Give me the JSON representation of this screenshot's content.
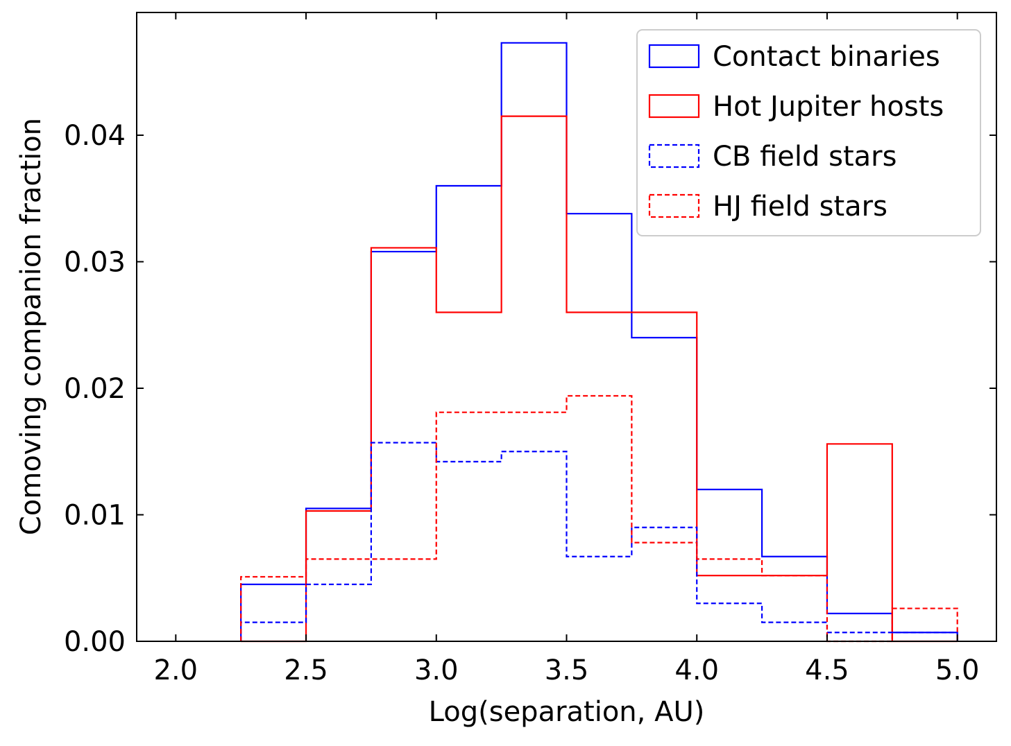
{
  "chart_data": {
    "type": "histogram-step",
    "xlabel": "Log(separation, AU)",
    "ylabel": "Comoving companion fraction",
    "xlim": [
      1.85,
      5.15
    ],
    "ylim": [
      0.0,
      0.0497
    ],
    "xticks": [
      2.0,
      2.5,
      3.0,
      3.5,
      4.0,
      4.5,
      5.0
    ],
    "xtick_labels": [
      "2.0",
      "2.5",
      "3.0",
      "3.5",
      "4.0",
      "4.5",
      "5.0"
    ],
    "yticks": [
      0.0,
      0.01,
      0.02,
      0.03,
      0.04
    ],
    "ytick_labels": [
      "0.00",
      "0.01",
      "0.02",
      "0.03",
      "0.04"
    ],
    "bin_edges": [
      2.25,
      2.5,
      2.75,
      3.0,
      3.25,
      3.5,
      3.75,
      4.0,
      4.25,
      4.5,
      4.75,
      5.0
    ],
    "legend_position": "top-right",
    "series": [
      {
        "name": "Contact binaries",
        "color": "#0000ff",
        "style": "solid",
        "values": [
          0.0045,
          0.0105,
          0.0308,
          0.036,
          0.0473,
          0.0338,
          0.024,
          0.012,
          0.0067,
          0.0022,
          0.0007
        ]
      },
      {
        "name": "Hot Jupiter hosts",
        "color": "#ff0000",
        "style": "solid",
        "values": [
          0.0,
          0.0103,
          0.0311,
          0.026,
          0.0415,
          0.026,
          0.026,
          0.0052,
          0.0052,
          0.0156,
          0.0
        ]
      },
      {
        "name": "CB field stars",
        "color": "#0000ff",
        "style": "dashed",
        "values": [
          0.0015,
          0.0045,
          0.0157,
          0.0142,
          0.015,
          0.0067,
          0.009,
          0.003,
          0.0015,
          0.0007,
          0.0007
        ]
      },
      {
        "name": "HJ field stars",
        "color": "#ff0000",
        "style": "dashed",
        "values": [
          0.0051,
          0.0065,
          0.0065,
          0.0181,
          0.0181,
          0.0194,
          0.0078,
          0.0065,
          0.0052,
          0.0,
          0.0026
        ]
      }
    ]
  }
}
